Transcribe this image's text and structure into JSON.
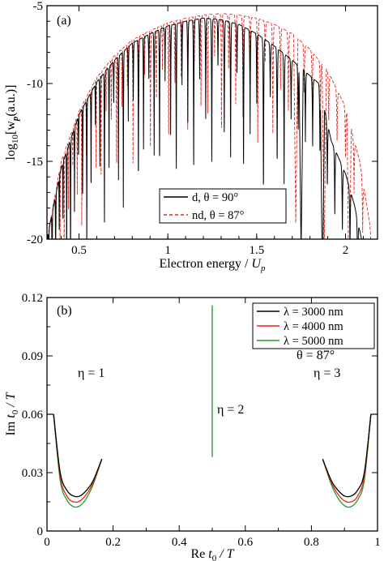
{
  "chart_data": [
    {
      "type": "line",
      "panel_label": "(a)",
      "xlabel_main": "Electron energy / ",
      "xlabel_var": "U",
      "xlabel_sub": "p",
      "ylabel_prefix": "log",
      "ylabel_sub10": "10",
      "ylabel_main": "[w",
      "ylabel_sub_p": "p",
      "ylabel_suffix": "(a.u.)]",
      "xlim": [
        0.32,
        2.18
      ],
      "ylim": [
        -20,
        -5
      ],
      "xticks": [
        0.5,
        1,
        1.5,
        2
      ],
      "xtick_labels": [
        "0.5",
        "1",
        "1.5",
        "2"
      ],
      "yticks": [
        -20,
        -15,
        -10,
        -5
      ],
      "ytick_labels": [
        "-20",
        "-15",
        "-10",
        "-5"
      ],
      "legend_position": "center-right",
      "series": [
        {
          "name": "d, θ = 90°",
          "color": "#000000",
          "style": "solid",
          "envelope": [
            [
              0.32,
              -20
            ],
            [
              0.4,
              -15.4
            ],
            [
              0.5,
              -12.0
            ],
            [
              0.6,
              -9.9
            ],
            [
              0.7,
              -8.5
            ],
            [
              0.8,
              -7.4
            ],
            [
              0.9,
              -6.8
            ],
            [
              1.0,
              -6.3
            ],
            [
              1.1,
              -6.0
            ],
            [
              1.2,
              -5.8
            ],
            [
              1.3,
              -5.9
            ],
            [
              1.4,
              -6.2
            ],
            [
              1.5,
              -6.8
            ],
            [
              1.6,
              -7.6
            ],
            [
              1.7,
              -8.5
            ],
            [
              1.8,
              -9.5
            ],
            [
              1.85,
              -10.0
            ],
            [
              1.92,
              -13.7
            ],
            [
              2.0,
              -15.8
            ],
            [
              2.05,
              -17.8
            ],
            [
              2.09,
              -20
            ]
          ],
          "minima": [
            1.75,
            1.87
          ]
        },
        {
          "name": "nd, θ = 87°",
          "color": "#e8241c",
          "style": "dashed",
          "envelope": [
            [
              0.32,
              -20
            ],
            [
              0.4,
              -15.0
            ],
            [
              0.5,
              -11.8
            ],
            [
              0.6,
              -9.6
            ],
            [
              0.7,
              -8.2
            ],
            [
              0.8,
              -7.2
            ],
            [
              0.9,
              -6.6
            ],
            [
              1.0,
              -6.1
            ],
            [
              1.1,
              -5.8
            ],
            [
              1.2,
              -5.6
            ],
            [
              1.3,
              -5.5
            ],
            [
              1.4,
              -5.6
            ],
            [
              1.5,
              -5.8
            ],
            [
              1.6,
              -6.2
            ],
            [
              1.7,
              -6.8
            ],
            [
              1.8,
              -7.8
            ],
            [
              1.9,
              -9.2
            ],
            [
              2.0,
              -11.5
            ],
            [
              2.08,
              -15.0
            ],
            [
              2.15,
              -20
            ]
          ],
          "minima": [
            1.72,
            1.88,
            2.02
          ]
        }
      ]
    },
    {
      "type": "line",
      "panel_label": "(b)",
      "xlabel_re": "Re ",
      "xlabel_var": "t",
      "xlabel_sub": "0",
      "xlabel_tail": " / T",
      "ylabel_im": "Im ",
      "ylabel_var": "t",
      "ylabel_sub": "0",
      "ylabel_tail": " / T",
      "xlim": [
        0,
        1
      ],
      "ylim": [
        0,
        0.12
      ],
      "xticks": [
        0,
        0.2,
        0.4,
        0.6,
        0.8,
        1
      ],
      "xtick_labels": [
        "0",
        "0.2",
        "0.4",
        "0.6",
        "0.8",
        "1"
      ],
      "yticks": [
        0,
        0.03,
        0.06,
        0.09,
        0.12
      ],
      "ytick_labels": [
        "0",
        "0.03",
        "0.06",
        "0.09",
        "0.12"
      ],
      "legend_position": "top-right",
      "annotations": [
        "η = 1",
        "η = 2",
        "η = 3",
        "θ = 87°"
      ],
      "series": [
        {
          "name": "λ = 3000 nm",
          "color": "#000000",
          "left_curve": [
            [
              0.02,
              0.06
            ],
            [
              0.04,
              0.03
            ],
            [
              0.06,
              0.021
            ],
            [
              0.08,
              0.018
            ],
            [
              0.1,
              0.018
            ],
            [
              0.12,
              0.021
            ],
            [
              0.14,
              0.026
            ],
            [
              0.166,
              0.037
            ]
          ],
          "right_curve": [
            [
              0.834,
              0.037
            ],
            [
              0.86,
              0.026
            ],
            [
              0.88,
              0.021
            ],
            [
              0.9,
              0.018
            ],
            [
              0.92,
              0.018
            ],
            [
              0.94,
              0.021
            ],
            [
              0.96,
              0.03
            ],
            [
              0.98,
              0.06
            ]
          ]
        },
        {
          "name": "λ = 4000 nm",
          "color": "#e8241c",
          "left_curve": [
            [
              0.02,
              0.06
            ],
            [
              0.04,
              0.028
            ],
            [
              0.06,
              0.018
            ],
            [
              0.08,
              0.015
            ],
            [
              0.1,
              0.0155
            ],
            [
              0.12,
              0.019
            ],
            [
              0.14,
              0.025
            ],
            [
              0.166,
              0.037
            ]
          ],
          "right_curve": [
            [
              0.834,
              0.037
            ],
            [
              0.86,
              0.025
            ],
            [
              0.88,
              0.019
            ],
            [
              0.9,
              0.0155
            ],
            [
              0.92,
              0.015
            ],
            [
              0.94,
              0.018
            ],
            [
              0.96,
              0.028
            ],
            [
              0.98,
              0.06
            ]
          ]
        },
        {
          "name": "λ = 5000 nm",
          "color": "#2a9a2a",
          "left_curve": [
            [
              0.02,
              0.06
            ],
            [
              0.04,
              0.026
            ],
            [
              0.06,
              0.016
            ],
            [
              0.08,
              0.0125
            ],
            [
              0.1,
              0.013
            ],
            [
              0.12,
              0.017
            ],
            [
              0.14,
              0.024
            ],
            [
              0.166,
              0.037
            ]
          ],
          "right_curve": [
            [
              0.834,
              0.037
            ],
            [
              0.86,
              0.024
            ],
            [
              0.88,
              0.017
            ],
            [
              0.9,
              0.013
            ],
            [
              0.92,
              0.0125
            ],
            [
              0.94,
              0.016
            ],
            [
              0.96,
              0.026
            ],
            [
              0.98,
              0.06
            ]
          ],
          "vertical_line": {
            "x": 0.5,
            "y_from": 0.038,
            "y_to": 0.116
          }
        }
      ]
    }
  ]
}
